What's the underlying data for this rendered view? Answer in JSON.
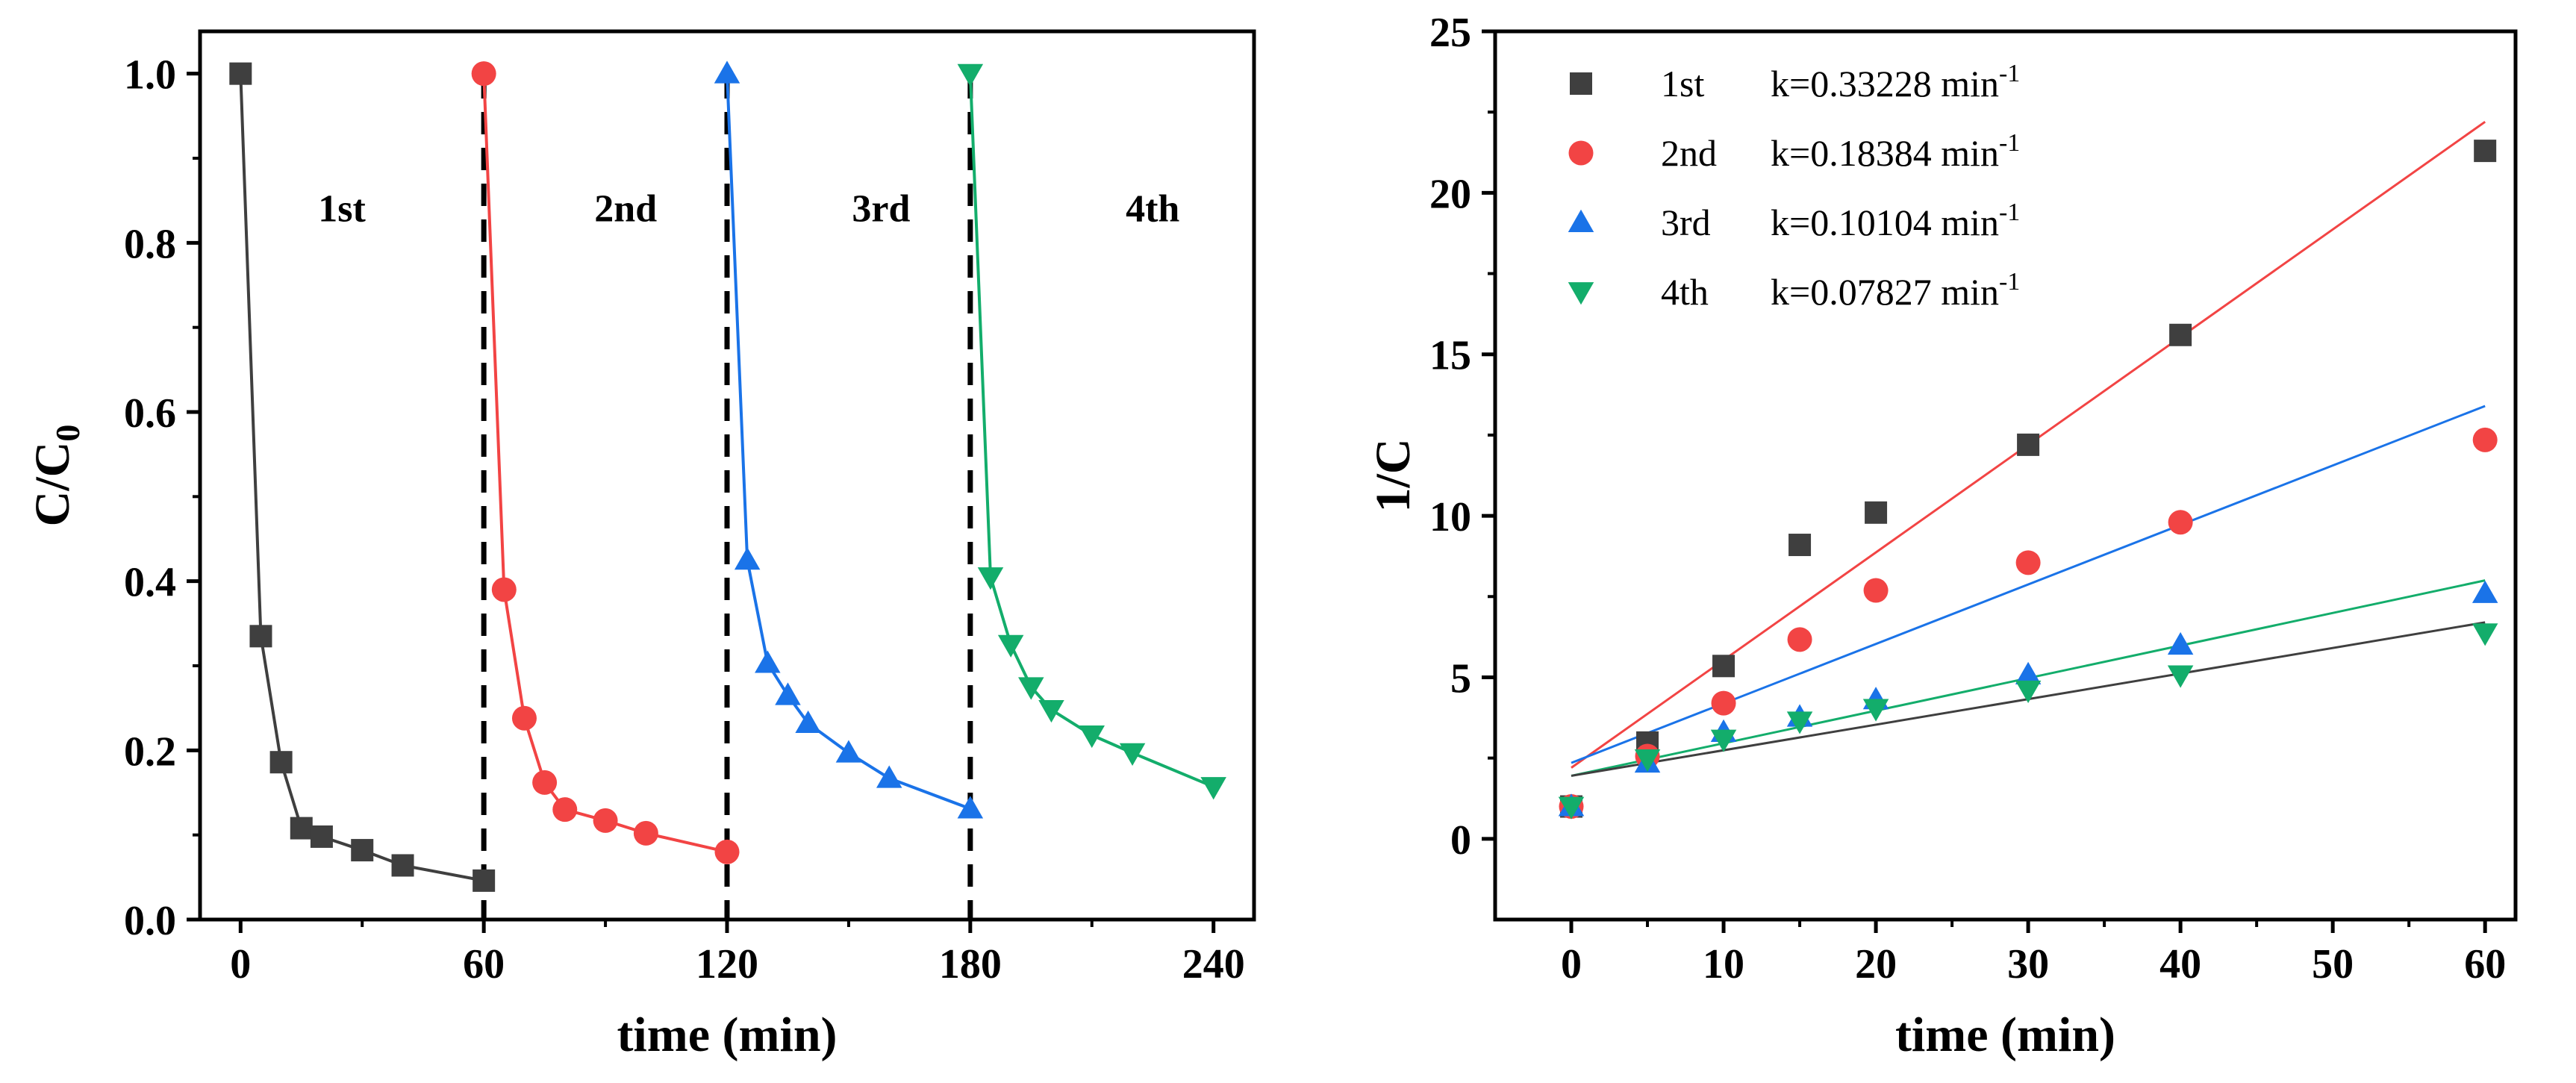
{
  "colors": {
    "black": "#000000",
    "gray": "#3f3f3f",
    "red": "#f24444",
    "blue": "#1a73e8",
    "green": "#13ad6b"
  },
  "chart_data": [
    {
      "type": "line",
      "panel": "left",
      "xlabel": "time (min)",
      "ylabel_main": "C/C",
      "ylabel_sub": "0",
      "xlim": [
        -10,
        250
      ],
      "ylim": [
        0,
        1.05
      ],
      "xticks": [
        0,
        60,
        120,
        180,
        240
      ],
      "xtick_labels": [
        "0",
        "60",
        "120",
        "180",
        "240"
      ],
      "yticks": [
        0.0,
        0.2,
        0.4,
        0.6,
        0.8,
        1.0
      ],
      "ytick_labels": [
        "0.0",
        "0.2",
        "0.4",
        "0.6",
        "0.8",
        "1.0"
      ],
      "dividers_x": [
        60,
        120,
        180
      ],
      "cycle_labels": [
        {
          "text": "1st",
          "x": 25,
          "y": 0.94
        },
        {
          "text": "2nd",
          "x": 95,
          "y": 0.94
        },
        {
          "text": "3rd",
          "x": 158,
          "y": 0.94
        },
        {
          "text": "4th",
          "x": 225,
          "y": 0.94
        }
      ],
      "series": [
        {
          "color": "#3f3f3f",
          "marker": "square",
          "x": [
            0,
            5,
            10,
            15,
            20,
            30,
            40,
            60
          ],
          "y": [
            1.0,
            0.335,
            0.186,
            0.108,
            0.098,
            0.082,
            0.064,
            0.046
          ]
        },
        {
          "color": "#f24444",
          "marker": "circle",
          "x": [
            60,
            65,
            70,
            75,
            80,
            90,
            100,
            120
          ],
          "y": [
            1.0,
            0.39,
            0.238,
            0.162,
            0.13,
            0.117,
            0.102,
            0.08
          ]
        },
        {
          "color": "#1a73e8",
          "marker": "triangle-up",
          "x": [
            120,
            125,
            130,
            135,
            140,
            150,
            160,
            180
          ],
          "y": [
            1.0,
            0.425,
            0.303,
            0.265,
            0.232,
            0.197,
            0.167,
            0.131
          ]
        },
        {
          "color": "#13ad6b",
          "marker": "triangle-down",
          "x": [
            180,
            185,
            190,
            195,
            200,
            210,
            220,
            240
          ],
          "y": [
            1.0,
            0.405,
            0.325,
            0.275,
            0.248,
            0.218,
            0.197,
            0.157
          ]
        }
      ]
    },
    {
      "type": "scatter",
      "panel": "right",
      "xlabel": "time (min)",
      "ylabel": "1/C",
      "xlim": [
        -5,
        62
      ],
      "ylim": [
        -2.5,
        25
      ],
      "xticks": [
        0,
        10,
        20,
        30,
        40,
        50,
        60
      ],
      "xtick_labels": [
        "0",
        "10",
        "20",
        "30",
        "40",
        "50",
        "60"
      ],
      "yticks": [
        0,
        5,
        10,
        15,
        20,
        25
      ],
      "ytick_labels": [
        "0",
        "5",
        "10",
        "15",
        "20",
        "25"
      ],
      "legend_position": "top-left",
      "series": [
        {
          "name": "1st",
          "k_label": "k=0.33228 min",
          "k_sup": "-1",
          "color": "#3f3f3f",
          "marker": "square",
          "x": [
            0,
            5,
            10,
            15,
            20,
            30,
            40,
            60
          ],
          "y": [
            1.0,
            2.98,
            5.35,
            9.1,
            10.1,
            12.2,
            15.6,
            21.3
          ],
          "fit": {
            "color": "#f24444",
            "x": [
              0,
              60
            ],
            "y": [
              2.2,
              22.2
            ]
          }
        },
        {
          "name": "2nd",
          "k_label": "k=0.18384 min",
          "k_sup": "-1",
          "color": "#f24444",
          "marker": "circle",
          "x": [
            0,
            5,
            10,
            15,
            20,
            30,
            40,
            60
          ],
          "y": [
            1.0,
            2.56,
            4.2,
            6.17,
            7.69,
            8.55,
            9.8,
            12.35
          ],
          "fit": {
            "color": "#1a73e8",
            "x": [
              0,
              60
            ],
            "y": [
              2.35,
              13.4
            ]
          }
        },
        {
          "name": "3rd",
          "k_label": "k=0.10104 min",
          "k_sup": "-1",
          "color": "#1a73e8",
          "marker": "triangle-up",
          "x": [
            0,
            5,
            10,
            15,
            20,
            30,
            40,
            60
          ],
          "y": [
            1.0,
            2.35,
            3.3,
            3.77,
            4.31,
            5.08,
            6.0,
            7.6
          ],
          "fit": {
            "color": "#13ad6b",
            "x": [
              0,
              60
            ],
            "y": [
              1.95,
              8.0
            ]
          }
        },
        {
          "name": "4th",
          "k_label": "k=0.07827 min",
          "k_sup": "-1",
          "color": "#13ad6b",
          "marker": "triangle-down",
          "x": [
            0,
            5,
            10,
            15,
            20,
            30,
            40,
            60
          ],
          "y": [
            1.0,
            2.47,
            3.08,
            3.64,
            4.03,
            4.6,
            5.07,
            6.37
          ],
          "fit": {
            "color": "#3f3f3f",
            "x": [
              0,
              60
            ],
            "y": [
              1.95,
              6.7
            ]
          }
        }
      ]
    }
  ]
}
